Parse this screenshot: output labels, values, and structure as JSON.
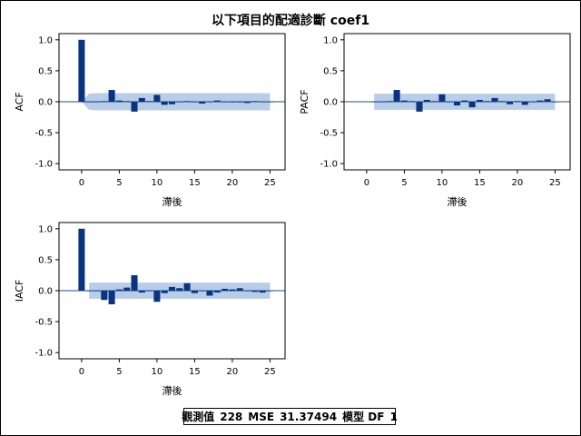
{
  "title": "以下項目的配適診斷 coef1",
  "footnote": {
    "obs_label": "觀測值",
    "obs_value": "228",
    "mse_label": "MSE",
    "mse_value": "31.37494",
    "df_label": "模型 DF",
    "df_value": "1"
  },
  "colors": {
    "bar": "#0a3480",
    "band": "#b8cde8",
    "zero_line": "#1f4e8c"
  },
  "chart_data": [
    {
      "type": "bar",
      "ylabel": "ACF",
      "xlabel": "滯後",
      "xlim": [
        -3,
        27
      ],
      "ylim": [
        -1.1,
        1.1
      ],
      "xticks": [
        0,
        5,
        10,
        15,
        20,
        25
      ],
      "yticks": [
        1.0,
        0.5,
        0.0,
        -0.5,
        -1.0
      ],
      "ytick_labels": [
        "1.0",
        "0.5",
        "0.0",
        "-0.5",
        "-1.0"
      ],
      "lags": [
        0,
        1,
        2,
        3,
        4,
        5,
        6,
        7,
        8,
        9,
        10,
        11,
        12,
        13,
        14,
        15,
        16,
        17,
        18,
        19,
        20,
        21,
        22,
        23,
        24,
        25
      ],
      "values": [
        1.0,
        0.0,
        0.0,
        0.01,
        0.19,
        0.02,
        0.01,
        -0.16,
        0.06,
        0.01,
        0.11,
        -0.05,
        -0.04,
        0.0,
        0.01,
        0.0,
        -0.03,
        0.0,
        0.02,
        0.0,
        -0.01,
        -0.01,
        -0.02,
        0.01,
        0.0,
        0.0
      ],
      "band_lags": [
        0,
        1,
        2,
        25
      ],
      "band_upper": [
        0.0,
        0.13,
        0.14,
        0.14
      ],
      "band_lower": [
        0.0,
        -0.13,
        -0.14,
        -0.14
      ]
    },
    {
      "type": "bar",
      "ylabel": "PACF",
      "xlabel": "滯後",
      "xlim": [
        -3,
        27
      ],
      "ylim": [
        -1.1,
        1.1
      ],
      "xticks": [
        0,
        5,
        10,
        15,
        20,
        25
      ],
      "yticks": [
        1.0,
        0.5,
        0.0,
        -0.5,
        -1.0
      ],
      "ytick_labels": [
        "1.0",
        "0.5",
        "0.0",
        "-0.5",
        "-1.0"
      ],
      "lags": [
        1,
        2,
        3,
        4,
        5,
        6,
        7,
        8,
        9,
        10,
        11,
        12,
        13,
        14,
        15,
        16,
        17,
        18,
        19,
        20,
        21,
        22,
        23,
        24,
        25
      ],
      "values": [
        0.0,
        0.0,
        0.01,
        0.19,
        0.02,
        0.01,
        -0.16,
        0.03,
        0.01,
        0.12,
        0.0,
        -0.06,
        0.02,
        -0.09,
        0.03,
        0.01,
        0.06,
        0.01,
        -0.04,
        0.01,
        -0.05,
        0.0,
        0.02,
        0.04,
        0.0
      ],
      "band_lags": [
        1,
        25
      ],
      "band_upper": [
        0.13,
        0.13
      ],
      "band_lower": [
        -0.13,
        -0.13
      ]
    },
    {
      "type": "bar",
      "ylabel": "IACF",
      "xlabel": "滯後",
      "xlim": [
        -3,
        27
      ],
      "ylim": [
        -1.1,
        1.1
      ],
      "xticks": [
        0,
        5,
        10,
        15,
        20,
        25
      ],
      "yticks": [
        1.0,
        0.5,
        0.0,
        -0.5,
        -1.0
      ],
      "ytick_labels": [
        "1.0",
        "0.5",
        "0.0",
        "-0.5",
        "-1.0"
      ],
      "lags": [
        0,
        1,
        2,
        3,
        4,
        5,
        6,
        7,
        8,
        9,
        10,
        11,
        12,
        13,
        14,
        15,
        16,
        17,
        18,
        19,
        20,
        21,
        22,
        23,
        24,
        25
      ],
      "values": [
        1.0,
        0.0,
        0.0,
        -0.15,
        -0.22,
        0.02,
        0.05,
        0.25,
        -0.03,
        0.0,
        -0.18,
        -0.04,
        0.06,
        0.04,
        0.12,
        -0.04,
        0.0,
        -0.08,
        -0.03,
        0.03,
        0.02,
        0.04,
        0.0,
        -0.02,
        -0.03,
        0.0
      ],
      "band_lags": [
        1,
        25
      ],
      "band_upper": [
        0.13,
        0.13
      ],
      "band_lower": [
        -0.13,
        -0.13
      ]
    }
  ]
}
